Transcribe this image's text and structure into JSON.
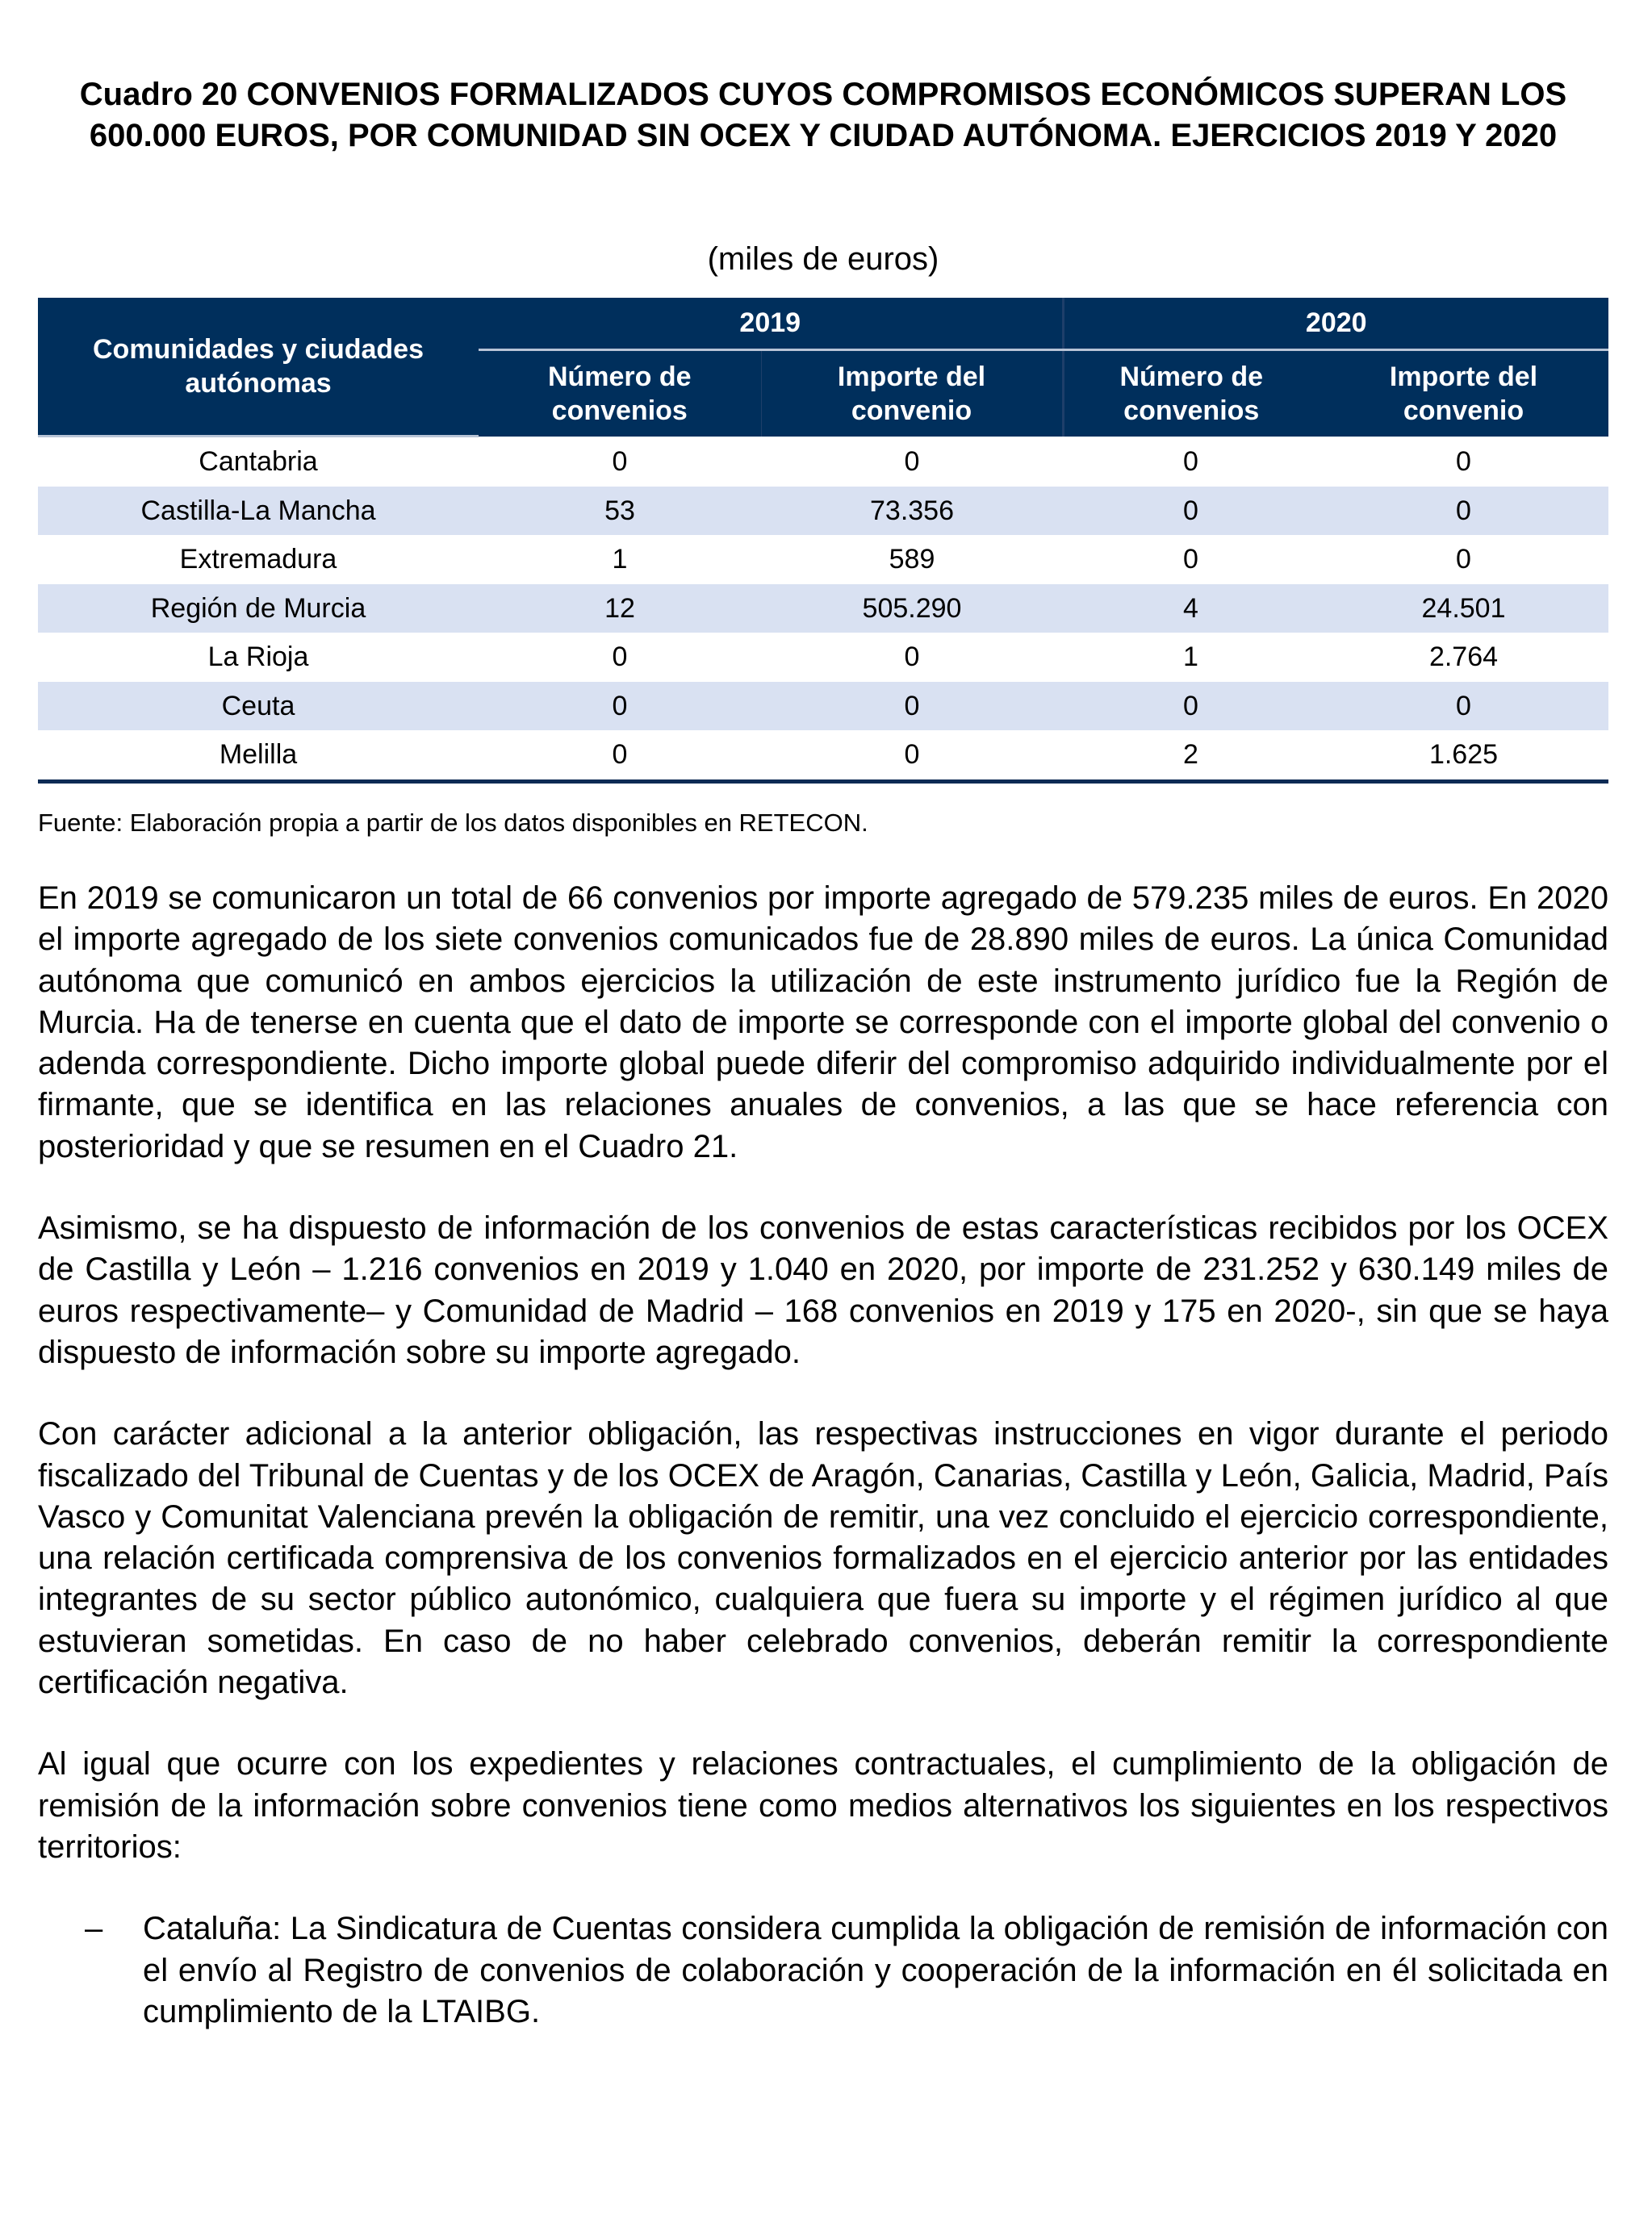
{
  "title": "Cuadro 20 CONVENIOS FORMALIZADOS CUYOS COMPROMISOS ECONÓMICOS SUPERAN LOS 600.000 EUROS, POR COMUNIDAD SIN OCEX Y CIUDAD AUTÓNOMA. EJERCICIOS 2019 Y 2020",
  "unit": "(miles de euros)",
  "table": {
    "col_region": "Comunidades y ciudades autónomas",
    "years": [
      "2019",
      "2020"
    ],
    "sub": [
      "Número de convenios",
      "Importe del convenio",
      "Número de convenios",
      "Importe del convenio"
    ],
    "rows": [
      [
        "Cantabria",
        "0",
        "0",
        "0",
        "0"
      ],
      [
        "Castilla-La Mancha",
        "53",
        "73.356",
        "0",
        "0"
      ],
      [
        "Extremadura",
        "1",
        "589",
        "0",
        "0"
      ],
      [
        "Región de Murcia",
        "12",
        "505.290",
        "4",
        "24.501"
      ],
      [
        "La Rioja",
        "0",
        "0",
        "1",
        "2.764"
      ],
      [
        "Ceuta",
        "0",
        "0",
        "0",
        "0"
      ],
      [
        "Melilla",
        "0",
        "0",
        "2",
        "1.625"
      ]
    ],
    "colors": {
      "header_bg": "#002f5c",
      "alt_row_bg": "#d9e1f2"
    }
  },
  "source": "Fuente: Elaboración propia a partir de los datos disponibles en RETECON.",
  "paragraphs": [
    "En 2019 se comunicaron un total de 66 convenios por importe agregado de 579.235 miles de euros. En 2020 el importe agregado de los siete convenios comunicados fue de 28.890 miles de euros. La única Comunidad autónoma que comunicó en ambos ejercicios la utilización de este instrumento jurídico fue la Región de Murcia. Ha de tenerse en cuenta que el dato de importe se corresponde con el importe global del convenio o adenda correspondiente. Dicho importe global puede diferir del compromiso adquirido individualmente por el firmante, que se identifica en las relaciones anuales de convenios, a las que se hace referencia con posterioridad y que se resumen en el Cuadro 21.",
    "Asimismo, se ha dispuesto de información de los convenios de estas características recibidos por los OCEX de Castilla y León – 1.216 convenios en 2019 y 1.040 en 2020, por importe de 231.252 y 630.149 miles de euros respectivamente– y Comunidad de Madrid – 168 convenios en 2019 y 175 en 2020-, sin que se haya dispuesto de información sobre su importe agregado.",
    "Con carácter adicional a la anterior obligación, las respectivas instrucciones en vigor durante el periodo fiscalizado del Tribunal de Cuentas y de los OCEX de Aragón, Canarias, Castilla y León, Galicia, Madrid, País Vasco y Comunitat Valenciana prevén la obligación de remitir, una vez concluido el ejercicio correspondiente, una relación certificada comprensiva de los convenios formalizados en el ejercicio anterior por las entidades integrantes de su sector público autonómico, cualquiera que fuera su importe y el régimen jurídico al que estuvieran sometidas. En caso de no haber celebrado convenios, deberán remitir la correspondiente certificación negativa.",
    "Al igual que ocurre con los expedientes y relaciones contractuales, el cumplimiento de la obligación de remisión de la información sobre convenios tiene como medios alternativos los siguientes en los respectivos territorios:"
  ],
  "bullets": [
    {
      "marker": "–",
      "text": "Cataluña: La Sindicatura de Cuentas considera cumplida la obligación de remisión de información con el envío al Registro de convenios de colaboración y cooperación de la información en él solicitada en cumplimiento de la LTAIBG."
    }
  ]
}
